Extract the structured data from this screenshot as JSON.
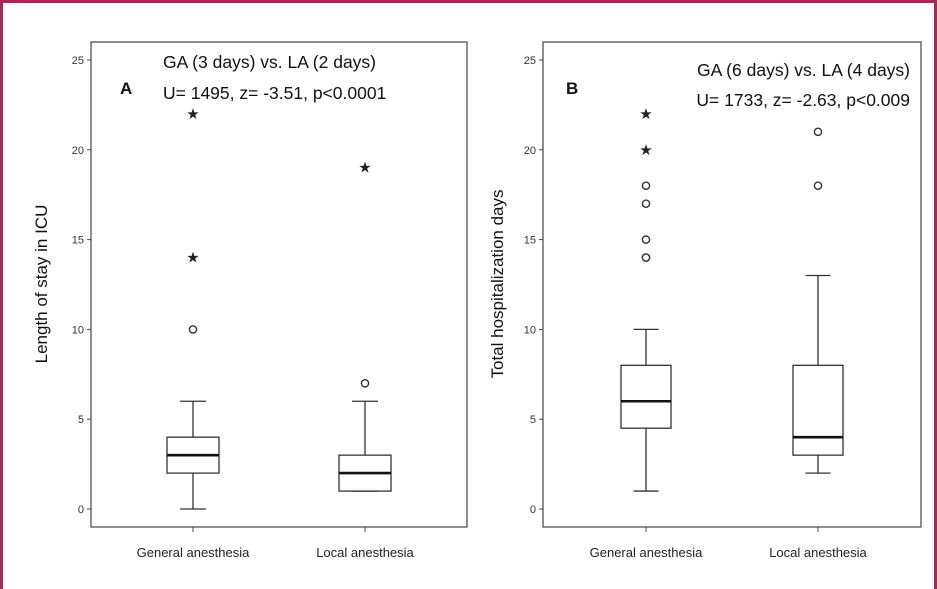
{
  "chart_data": [
    {
      "type": "box",
      "panel_label": "A",
      "annotation_lines": [
        "GA (3 days) vs. LA (2 days)",
        "U= 1495, z= -3.51, p<0.0001"
      ],
      "ylabel": "Length of stay in ICU",
      "xlabel": "",
      "ylim": [
        -1,
        26
      ],
      "yticks": [
        0,
        5,
        10,
        15,
        20,
        25
      ],
      "categories": [
        "General anesthesia",
        "Local anesthesia"
      ],
      "boxes": [
        {
          "min": 0,
          "q1": 2,
          "median": 3,
          "q3": 4,
          "max": 6,
          "outliers_circle": [
            10
          ],
          "outliers_star": [
            14,
            22
          ]
        },
        {
          "min": 1,
          "q1": 1,
          "median": 2,
          "q3": 3,
          "max": 6,
          "outliers_circle": [
            7
          ],
          "outliers_star": [
            19
          ]
        }
      ],
      "grid": false
    },
    {
      "type": "box",
      "panel_label": "B",
      "annotation_lines": [
        "GA (6 days) vs. LA (4 days)",
        "U= 1733, z= -2.63, p<0.009"
      ],
      "ylabel": "Total hospitalization days",
      "xlabel": "",
      "ylim": [
        -1,
        26
      ],
      "yticks": [
        0,
        5,
        10,
        15,
        20,
        25
      ],
      "categories": [
        "General anesthesia",
        "Local anesthesia"
      ],
      "boxes": [
        {
          "min": 1,
          "q1": 4.5,
          "median": 6,
          "q3": 8,
          "max": 10,
          "outliers_circle": [
            14,
            14,
            15,
            17,
            18
          ],
          "outliers_star": [
            20,
            22
          ]
        },
        {
          "min": 2,
          "q1": 3,
          "median": 4,
          "q3": 8,
          "max": 13,
          "outliers_circle": [
            18,
            21
          ],
          "outliers_star": []
        }
      ],
      "grid": false
    }
  ]
}
